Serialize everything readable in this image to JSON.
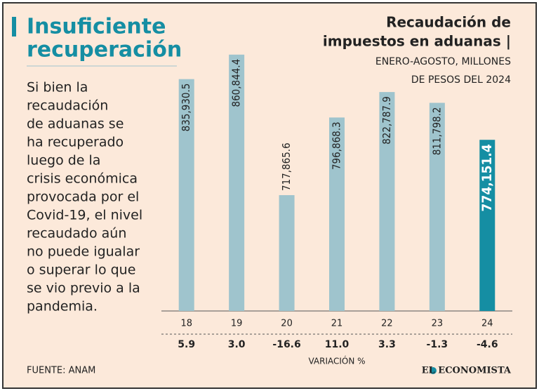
{
  "headline": [
    "Insuficiente",
    "recuperación"
  ],
  "body": [
    "Si bien la",
    "recaudación",
    "de aduanas se",
    "ha recuperado",
    "luego de la",
    "crisis económica",
    "provocada por el",
    "Covid-19, el nivel",
    "recaudado aún",
    "no puede igualar",
    "o superar lo que",
    "se vio previo a la",
    "pandemia."
  ],
  "source": "FUENTE: ANAM",
  "brand": "EL ECONOMISTA",
  "chart_data": {
    "type": "bar",
    "title": [
      "Recaudación de",
      "impuestos en aduanas |"
    ],
    "subtitle": [
      "ENERO-AGOSTO, MILLONES",
      "DE PESOS DEL 2024"
    ],
    "categories": [
      "18",
      "19",
      "20",
      "21",
      "22",
      "23",
      "24"
    ],
    "values": [
      835930.5,
      860844.4,
      717865.6,
      796868.3,
      822787.9,
      811798.2,
      774151.4
    ],
    "value_labels": [
      "835,930.5",
      "860,844.4",
      "717,865.6",
      "796,868.3",
      "822,787.9",
      "811,798.2",
      "774,151.4"
    ],
    "colors": [
      "#9fc4cd",
      "#9fc4cd",
      "#9fc4cd",
      "#9fc4cd",
      "#9fc4cd",
      "#9fc4cd",
      "#158ea3"
    ],
    "ylim": [
      600000,
      870000
    ],
    "variation": {
      "label": "VARIACIÓN %",
      "values": [
        5.9,
        3.0,
        -16.6,
        11.0,
        3.3,
        -1.3,
        -4.6
      ],
      "value_labels": [
        "5.9",
        "3.0",
        "-16.6",
        "11.0",
        "3.3",
        "-1.3",
        "-4.6"
      ]
    }
  }
}
